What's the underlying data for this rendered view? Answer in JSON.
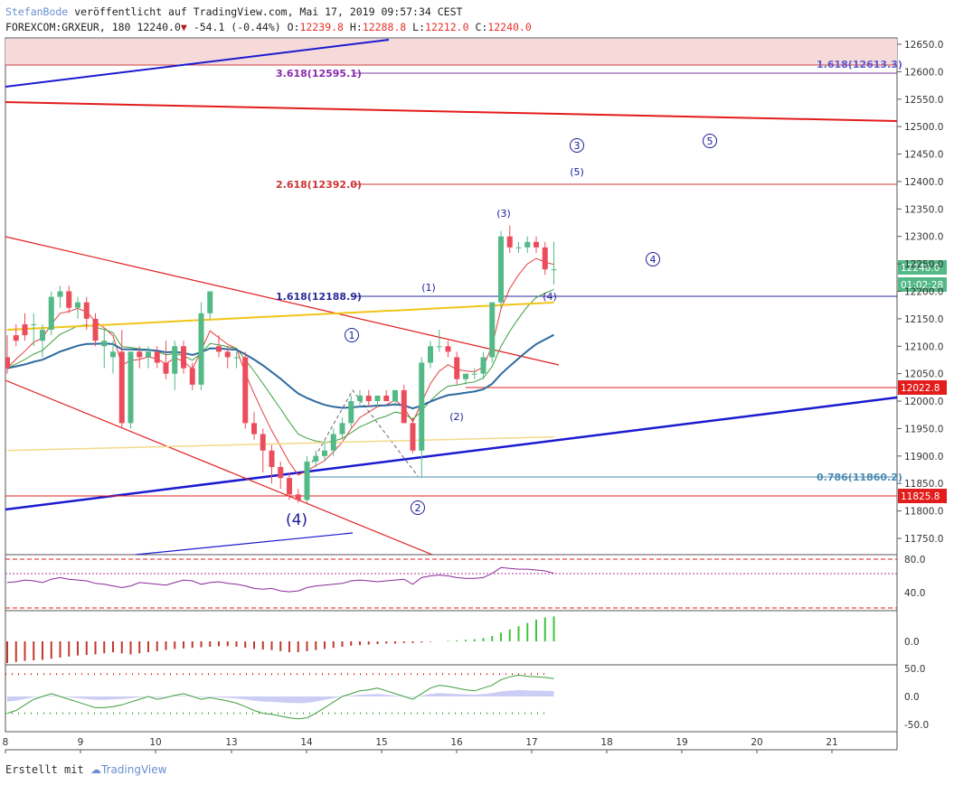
{
  "header": {
    "author": "StefanBode",
    "published": "veröffentlicht auf TradingView.com, Mai 17, 2019 09:57:34 CEST",
    "symbol": "FOREXCOM:GRXEUR, 180",
    "last": "12240.0",
    "change": "-54.1 (-0.44%)",
    "o_label": "O:",
    "o": "12239.8",
    "h_label": "H:",
    "h": "12288.8",
    "l_label": "L:",
    "l": "12212.0",
    "c_label": "C:",
    "c": "12240.0"
  },
  "footer": {
    "created_with": "Erstellt mit",
    "brand": "TradingView"
  },
  "colors": {
    "up": "#53b987",
    "down": "#eb4d5c",
    "blue_line": "#1a1ad0",
    "red_line": "#e31c1c",
    "ema_blue": "#2e6aa0",
    "ema_yellow": "#f0c419",
    "ema_green": "#3c9e3c",
    "ema_red": "#e53b3b"
  },
  "chart_data": {
    "type": "candlestick",
    "x_ticks": [
      "8",
      "9",
      "10",
      "13",
      "14",
      "15",
      "16",
      "17",
      "18",
      "19",
      "20",
      "21"
    ],
    "y_ticks": [
      "12650.0",
      "12600.0",
      "12550.0",
      "12500.0",
      "12450.0",
      "12400.0",
      "12350.0",
      "12300.0",
      "12250.0",
      "12200.0",
      "12150.0",
      "12100.0",
      "12050.0",
      "12000.0",
      "11950.0",
      "11900.0",
      "11850.0",
      "11800.0",
      "11750.0"
    ],
    "ylim": [
      11700,
      12670
    ],
    "candles": [
      [
        12080,
        12120,
        12060,
        12050
      ],
      [
        12120,
        12140,
        12110,
        12100
      ],
      [
        12140,
        12160,
        12120,
        12110
      ],
      [
        12140,
        12160,
        12140,
        12100
      ],
      [
        12110,
        12140,
        12130,
        12080
      ],
      [
        12130,
        12200,
        12190,
        12120
      ],
      [
        12190,
        12210,
        12200,
        12170
      ],
      [
        12200,
        12210,
        12170,
        12160
      ],
      [
        12170,
        12190,
        12180,
        12150
      ],
      [
        12180,
        12190,
        12150,
        12130
      ],
      [
        12150,
        12160,
        12110,
        12100
      ],
      [
        12100,
        12130,
        12110,
        12060
      ],
      [
        12080,
        12110,
        12090,
        12050
      ],
      [
        12090,
        12130,
        11960,
        11950
      ],
      [
        11960,
        12090,
        12090,
        11950
      ],
      [
        12090,
        12100,
        12080,
        12060
      ],
      [
        12080,
        12100,
        12090,
        12060
      ],
      [
        12090,
        12100,
        12070,
        12060
      ],
      [
        12070,
        12110,
        12050,
        12040
      ],
      [
        12050,
        12110,
        12100,
        12020
      ],
      [
        12100,
        12110,
        12060,
        12050
      ],
      [
        12060,
        12070,
        12030,
        12020
      ],
      [
        12030,
        12180,
        12160,
        12020
      ],
      [
        12160,
        12200,
        12200,
        12150
      ],
      [
        12100,
        12120,
        12090,
        12080
      ],
      [
        12090,
        12100,
        12080,
        12060
      ],
      [
        12080,
        12090,
        12080,
        12060
      ],
      [
        12080,
        12090,
        11960,
        11950
      ],
      [
        11960,
        11980,
        11940,
        11930
      ],
      [
        11940,
        11950,
        11910,
        11870
      ],
      [
        11910,
        11920,
        11880,
        11850
      ],
      [
        11880,
        11890,
        11860,
        11840
      ],
      [
        11860,
        11870,
        11830,
        11820
      ],
      [
        11830,
        11840,
        11820,
        11815
      ],
      [
        11820,
        11900,
        11890,
        11815
      ],
      [
        11890,
        11910,
        11900,
        11880
      ],
      [
        11900,
        11930,
        11910,
        11890
      ],
      [
        11910,
        11950,
        11940,
        11900
      ],
      [
        11940,
        11970,
        11960,
        11930
      ],
      [
        11960,
        12010,
        12000,
        11950
      ],
      [
        12000,
        12020,
        12010,
        11990
      ],
      [
        12010,
        12020,
        12000,
        11990
      ],
      [
        12000,
        12010,
        12010,
        11990
      ],
      [
        12010,
        12020,
        12000,
        12000
      ],
      [
        12000,
        12020,
        12020,
        11990
      ],
      [
        12020,
        12030,
        11960,
        11960
      ],
      [
        11960,
        11970,
        11910,
        11905
      ],
      [
        11910,
        12080,
        12070,
        11860
      ],
      [
        12070,
        12110,
        12100,
        12060
      ],
      [
        12100,
        12130,
        12100,
        12090
      ],
      [
        12100,
        12110,
        12090,
        12080
      ],
      [
        12080,
        12090,
        12040,
        12030
      ],
      [
        12040,
        12050,
        12050,
        12030
      ],
      [
        12050,
        12060,
        12050,
        12040
      ],
      [
        12050,
        12090,
        12080,
        12040
      ],
      [
        12080,
        12180,
        12180,
        12070
      ],
      [
        12180,
        12310,
        12300,
        12170
      ],
      [
        12300,
        12320,
        12280,
        12270
      ],
      [
        12280,
        12290,
        12280,
        12270
      ],
      [
        12280,
        12300,
        12290,
        12270
      ],
      [
        12290,
        12300,
        12280,
        12270
      ],
      [
        12280,
        12290,
        12240,
        12230
      ],
      [
        12240,
        12290,
        12240,
        12212
      ]
    ],
    "price_labels": {
      "p1": "12240.0",
      "countdown": "01:02:28",
      "p2": "12022.8",
      "p3": "11825.8"
    },
    "fib_labels": {
      "f1": "3.618(12595.1)",
      "f2": "2.618(12392.0)",
      "f3": "1.618(12188.9)",
      "f4": "1.618(12613.3)",
      "f5": "0.786(11860.2)"
    },
    "wave_labels": {
      "w1": "1",
      "w2": "2",
      "w3": "3",
      "w4": "4",
      "w5": "5",
      "p1": "(1)",
      "p2": "(2)",
      "p3": "(3)",
      "p4": "(4)",
      "p5": "(5)",
      "big4": "(4)"
    },
    "rsi": {
      "ticks": [
        "80.0",
        "40.0"
      ],
      "values": [
        52,
        53,
        55,
        54,
        52,
        56,
        58,
        56,
        55,
        54,
        51,
        50,
        48,
        46,
        48,
        52,
        51,
        50,
        49,
        52,
        55,
        54,
        50,
        52,
        53,
        51,
        50,
        48,
        45,
        44,
        45,
        42,
        41,
        42,
        46,
        48,
        49,
        50,
        51,
        54,
        55,
        54,
        53,
        54,
        55,
        56,
        50,
        58,
        60,
        61,
        60,
        58,
        57,
        57,
        58,
        63,
        70,
        69,
        68,
        68,
        67,
        66,
        63
      ]
    },
    "histogram": {
      "ticks": [
        "0.0"
      ],
      "values": [
        -40,
        -38,
        -36,
        -35,
        -34,
        -32,
        -30,
        -28,
        -26,
        -25,
        -24,
        -22,
        -20,
        -22,
        -24,
        -22,
        -20,
        -18,
        -16,
        -14,
        -13,
        -12,
        -11,
        -10,
        -9,
        -9,
        -10,
        -12,
        -14,
        -15,
        -16,
        -18,
        -20,
        -20,
        -18,
        -16,
        -14,
        -12,
        -10,
        -8,
        -7,
        -6,
        -5,
        -4,
        -4,
        -3,
        -3,
        -2,
        -1,
        0,
        1,
        2,
        3,
        4,
        6,
        10,
        16,
        22,
        28,
        34,
        40,
        44,
        46
      ]
    },
    "oscillator": {
      "ticks": [
        "50.0",
        "0.0",
        "-50.0"
      ],
      "values": [
        -30,
        -25,
        -15,
        -5,
        0,
        5,
        0,
        -5,
        -10,
        -15,
        -20,
        -20,
        -18,
        -15,
        -10,
        -5,
        0,
        -5,
        -2,
        2,
        5,
        0,
        -5,
        -2,
        -5,
        -8,
        -12,
        -18,
        -25,
        -30,
        -32,
        -35,
        -38,
        -40,
        -38,
        -30,
        -20,
        -10,
        0,
        5,
        10,
        12,
        15,
        10,
        5,
        0,
        -5,
        5,
        15,
        20,
        18,
        15,
        12,
        10,
        15,
        20,
        30,
        35,
        38,
        36,
        35,
        34,
        32
      ]
    }
  }
}
